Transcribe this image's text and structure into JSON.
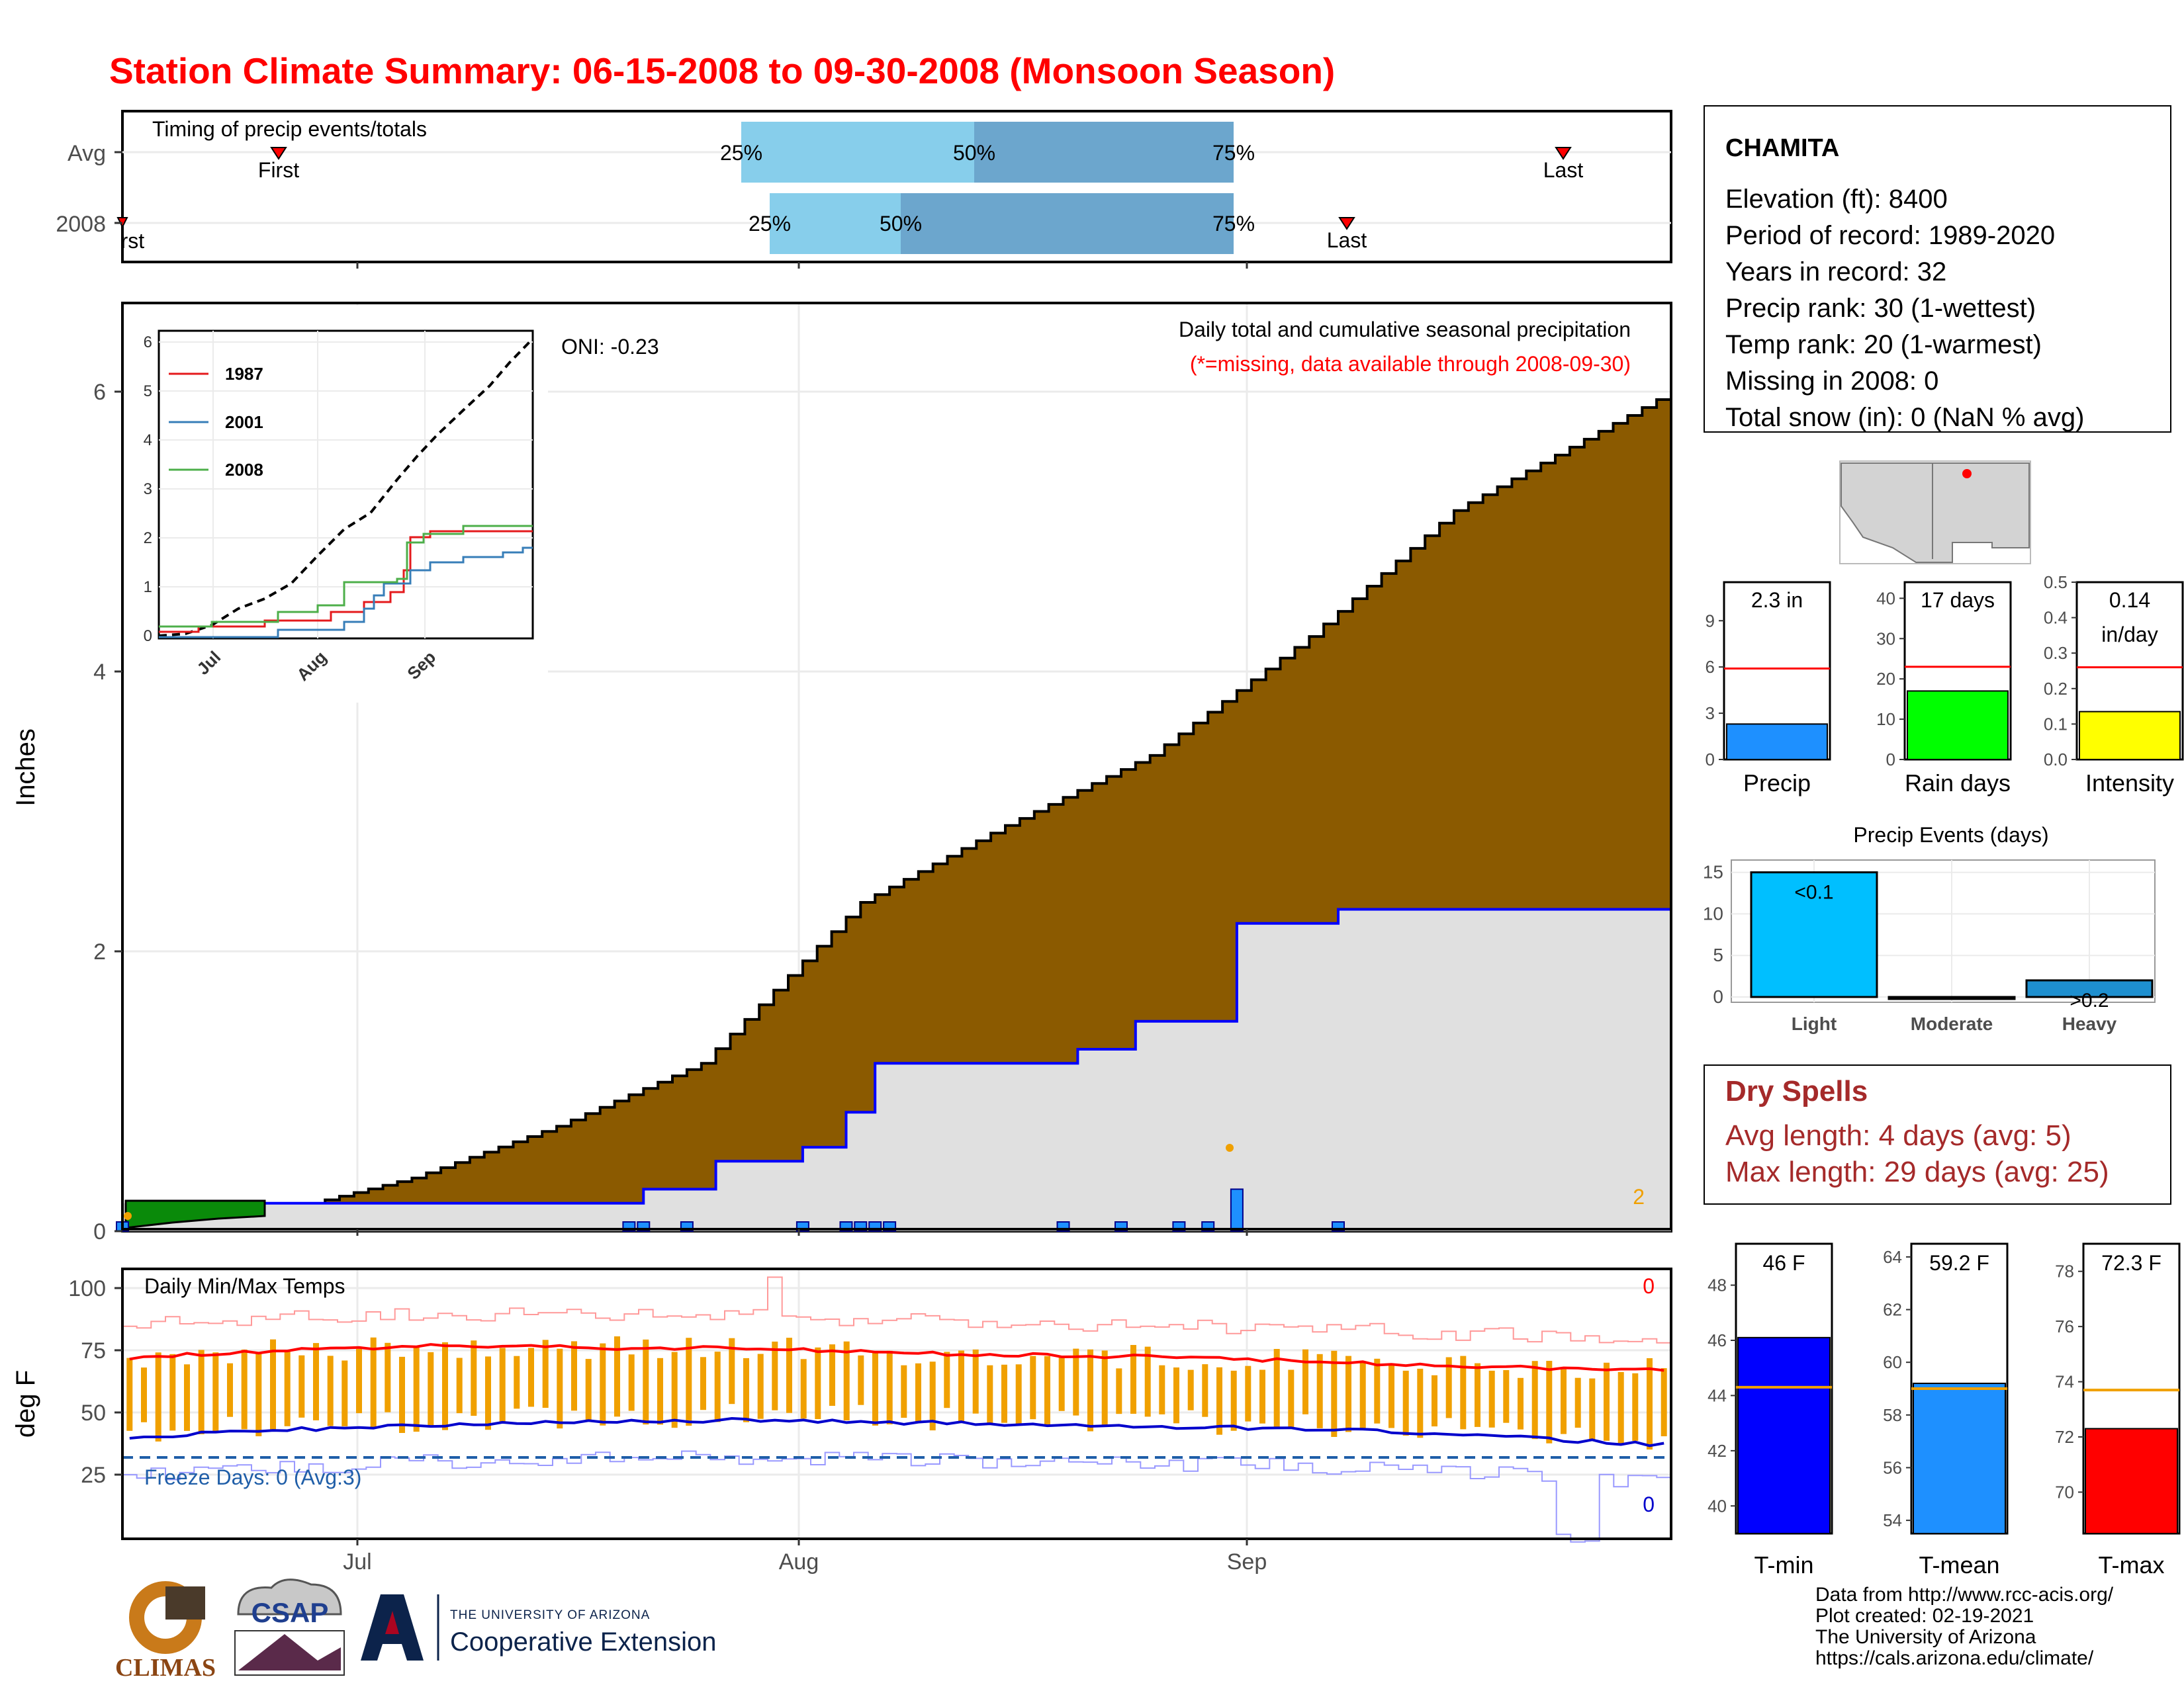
{
  "title": "Station Climate Summary: 06-15-2008 to 09-30-2008 (Monsoon Season)",
  "colors": {
    "title": "#ff0000",
    "cumulative_avg_fill": "#8b5a00",
    "cumulative_obs_fill": "#e0e0e0",
    "obs_line": "#0000ff",
    "daily_bar": "#1e90ff",
    "quartile_light": "#87ceeb",
    "quartile_dark": "#6ca6cd",
    "temp_bar": "#f0a000",
    "max_line": "#ff0000",
    "min_line": "#0000cc",
    "dry_spell_text": "#a52a2a",
    "precip_bar": "#1e90ff",
    "rain_days_bar": "#00ff00",
    "intensity_bar": "#ffff00",
    "tmin_bar": "#0000ff",
    "tmean_bar": "#1e90ff",
    "tmax_bar": "#ff0000",
    "event_bar": "#00bfff"
  },
  "timing_panel": {
    "label": "Timing of precip events/totals",
    "rows": [
      {
        "name": "Avg",
        "q25": "25%",
        "q50": "50%",
        "q75": "75%",
        "first": "First",
        "last": "Last"
      },
      {
        "name": "2008",
        "q25": "25%",
        "q50": "50%",
        "q75": "75%",
        "first": "First",
        "last": "Last"
      }
    ]
  },
  "precip_panel": {
    "annotation": "Daily total and cumulative seasonal precipitation",
    "missing_note": "(*=missing, data available through 2008-09-30)",
    "oni": "ONI: -0.23",
    "ylabel": "Inches",
    "corner_count": "2"
  },
  "inset": {
    "legend": [
      "1987",
      "2001",
      "2008"
    ],
    "colors": [
      "#e41a1c",
      "#377eb8",
      "#4daf4a"
    ],
    "xticks": [
      "Jul",
      "Aug",
      "Sep"
    ],
    "yticks": [
      "0",
      "1",
      "2",
      "3",
      "4",
      "5",
      "6"
    ]
  },
  "temp_panel": {
    "label": "Daily Min/Max Temps",
    "ylabel": "deg F",
    "freeze": "Freeze Days: 0 (Avg:3)",
    "count_hot": "0",
    "count_cold": "0"
  },
  "x_axis": {
    "ticks": [
      "Jul",
      "Aug",
      "Sep"
    ]
  },
  "station": {
    "name": "CHAMITA",
    "lines": [
      "Elevation (ft): 8400",
      "Period of record: 1989-2020",
      "Years in record: 32",
      "Precip rank: 30 (1-wettest)",
      "Temp rank: 20 (1-warmest)",
      "Missing in 2008: 0",
      "Total snow (in): 0 (NaN % avg)"
    ]
  },
  "mini_bars": [
    {
      "label": "Precip",
      "value_text": "2.3 in",
      "value": 2.3,
      "avg": 5.9,
      "ymax": 11.5,
      "ticks": [
        0,
        3,
        6,
        9
      ]
    },
    {
      "label": "Rain days",
      "value_text": "17 days",
      "value": 17,
      "avg": 23,
      "ymax": 44,
      "ticks": [
        0,
        10,
        20,
        30,
        40
      ]
    },
    {
      "label": "Intensity",
      "value_text": "0.14",
      "value_text2": "in/day",
      "value": 0.135,
      "avg": 0.26,
      "ymax": 0.5,
      "ticks": [
        0.0,
        0.1,
        0.2,
        0.3,
        0.4,
        0.5
      ]
    }
  ],
  "precip_events": {
    "title": "Precip Events (days)",
    "categories": [
      "Light",
      "Moderate",
      "Heavy"
    ],
    "values": [
      15,
      0,
      2
    ],
    "bar_labels": [
      "<0.1",
      "",
      ">0.2"
    ],
    "ticks": [
      0,
      5,
      10,
      15
    ]
  },
  "dry_spells": {
    "title": "Dry Spells",
    "avg": "Avg length: 4 days (avg: 5)",
    "max": "Max length: 29 days (avg: 25)"
  },
  "temp_bars": [
    {
      "label": "T-min",
      "value_text": "46 F",
      "value": 46.1,
      "avg": 44.3,
      "ymin": 39,
      "ymax": 49.5,
      "ticks": [
        40,
        42,
        44,
        46,
        48
      ]
    },
    {
      "label": "T-mean",
      "value_text": "59.2 F",
      "value": 59.2,
      "avg": 59.0,
      "ymin": 53.5,
      "ymax": 64.5,
      "ticks": [
        54,
        56,
        58,
        60,
        62,
        64
      ]
    },
    {
      "label": "T-max",
      "value_text": "72.3 F",
      "value": 72.3,
      "avg": 73.7,
      "ymin": 68.5,
      "ymax": 79,
      "ticks": [
        70,
        72,
        74,
        76,
        78
      ]
    }
  ],
  "footer": {
    "lines": [
      "Data from http://www.rcc-acis.org/",
      "Plot created: 02-19-2021",
      "The University of Arizona",
      "https://cals.arizona.edu/climate/"
    ]
  },
  "logos": {
    "climas": "CLIMAS",
    "csap": "CSAP",
    "ua_top": "THE UNIVERSITY OF ARIZONA",
    "ua_bottom": "Cooperative Extension"
  },
  "chart_data": [
    {
      "type": "area",
      "title": "Daily total and cumulative seasonal precipitation",
      "ylabel": "Inches",
      "ylim": [
        0,
        6.6
      ],
      "x_range": [
        "2008-06-15",
        "2008-09-30"
      ],
      "series": [
        {
          "name": "avg cumulative",
          "x": [
            "2008-06-15",
            "2008-06-25",
            "2008-07-05",
            "2008-07-15",
            "2008-07-25",
            "2008-08-05",
            "2008-08-15",
            "2008-08-25",
            "2008-09-05",
            "2008-09-15",
            "2008-09-30"
          ],
          "values": [
            0.02,
            0.12,
            0.38,
            0.75,
            1.2,
            2.35,
            2.9,
            3.4,
            4.25,
            5.15,
            6.0
          ]
        },
        {
          "name": "2008 cumulative",
          "x": [
            "2008-06-15",
            "2008-07-20",
            "2008-07-21",
            "2008-07-26",
            "2008-08-01",
            "2008-08-04",
            "2008-08-06",
            "2008-08-20",
            "2008-08-24",
            "2008-08-31",
            "2008-09-07",
            "2008-09-30"
          ],
          "values": [
            0.2,
            0.2,
            0.3,
            0.5,
            0.6,
            0.85,
            1.2,
            1.3,
            1.5,
            2.2,
            2.3,
            2.3
          ]
        }
      ]
    },
    {
      "type": "line",
      "title": "Daily Min/Max Temps",
      "ylabel": "deg F",
      "ylim": [
        10,
        108
      ],
      "series": [
        {
          "name": "avg max",
          "values": [
            72,
            75,
            77,
            76,
            76,
            74,
            73,
            72,
            70,
            68,
            67
          ]
        },
        {
          "name": "avg min",
          "values": [
            40,
            43,
            45,
            46,
            47,
            46,
            45,
            44,
            43,
            40,
            37
          ]
        }
      ]
    }
  ]
}
